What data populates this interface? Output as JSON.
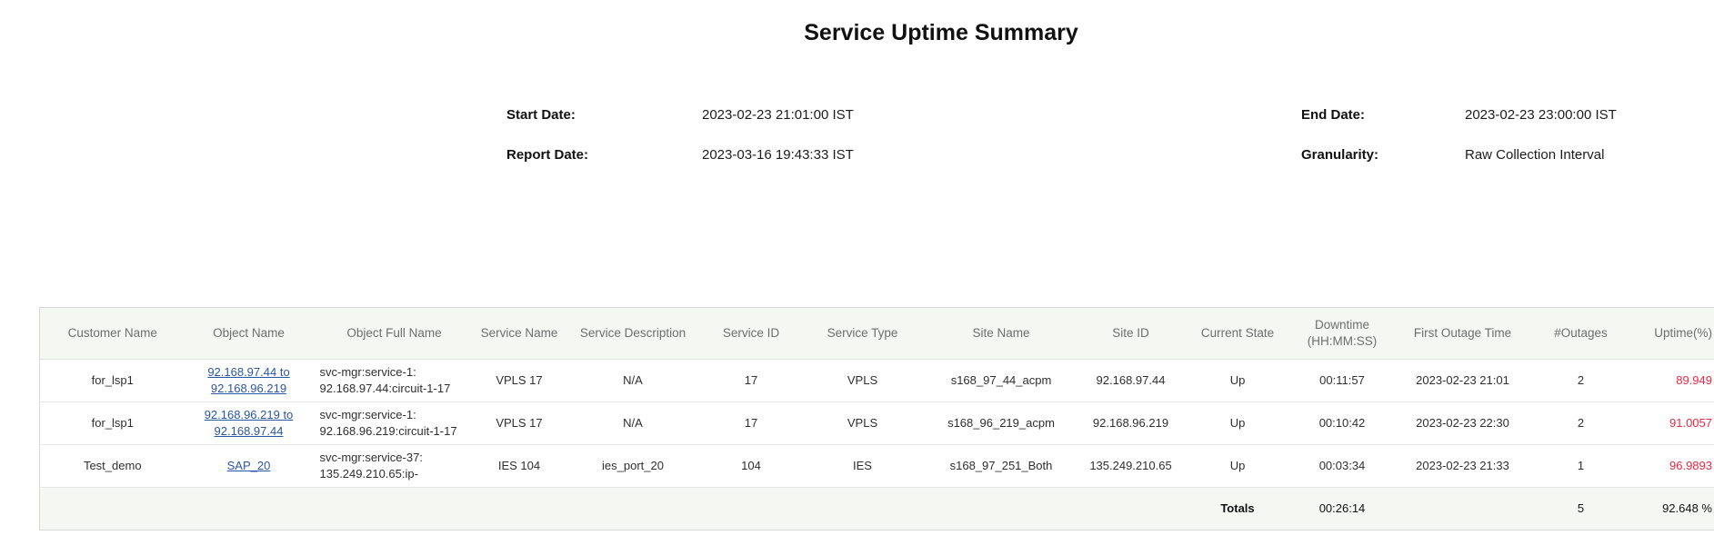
{
  "title": "Service Uptime Summary",
  "meta": {
    "start_date_label": "Start Date:",
    "start_date_value": "2023-02-23 21:01:00 IST",
    "end_date_label": "End Date:",
    "end_date_value": "2023-02-23 23:00:00 IST",
    "report_date_label": "Report Date:",
    "report_date_value": "2023-03-16 19:43:33 IST",
    "granularity_label": "Granularity:",
    "granularity_value": "Raw Collection Interval"
  },
  "colors": {
    "link_blue": "#2a56a5",
    "uptime_alert_red": "#f02642",
    "header_text_gray": "#6e6e6e",
    "header_background": "#f5f7f3"
  },
  "table": {
    "headers": [
      "Customer Name",
      "Object Name",
      "Object Full Name",
      "Service Name",
      "Service Description",
      "Service ID",
      "Service Type",
      "Site Name",
      "Site ID",
      "Current State",
      "Downtime\n(HH:MM:SS)",
      "First Outage Time",
      "#Outages",
      "Uptime(%)"
    ],
    "rows": [
      {
        "cells": [
          "for_lsp1",
          "92.168.97.44 to 92.168.96.219",
          "svc-mgr:service-1: 92.168.97.44:circuit-1-17",
          "VPLS 17",
          "N/A",
          "17",
          "VPLS",
          "s168_97_44_acpm",
          "92.168.97.44",
          "Up",
          "00:11:57",
          "2023-02-23 21:01",
          "2",
          "89.949"
        ]
      },
      {
        "cells": [
          "for_lsp1",
          "92.168.96.219 to 92.168.97.44",
          "svc-mgr:service-1: 92.168.96.219:circuit-1-17",
          "VPLS 17",
          "N/A",
          "17",
          "VPLS",
          "s168_96_219_acpm",
          "92.168.96.219",
          "Up",
          "00:10:42",
          "2023-02-23 22:30",
          "2",
          "91.0057"
        ]
      },
      {
        "cells": [
          "Test_demo",
          "SAP_20",
          "svc-mgr:service-37: 135.249.210.65:ip-",
          "IES 104",
          "ies_port_20",
          "104",
          "IES",
          "s168_97_251_Both",
          "135.249.210.65",
          "Up",
          "00:03:34",
          "2023-02-23 21:33",
          "1",
          "96.9893"
        ]
      }
    ],
    "totals": {
      "label": "Totals",
      "downtime": "00:26:14",
      "outages": "5",
      "uptime": "92.648 %"
    }
  }
}
